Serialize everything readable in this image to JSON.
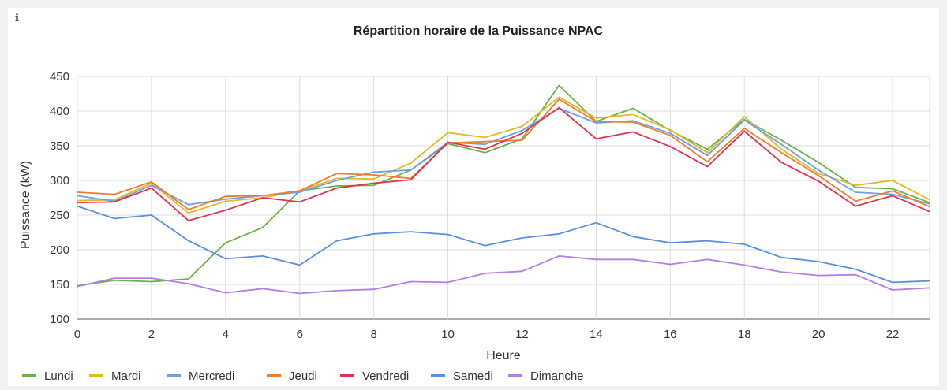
{
  "info_icon": "i",
  "chart_data": {
    "type": "line",
    "title": "Répartition horaire de la Puissance NPAC",
    "xlabel": "Heure",
    "ylabel": "Puissance (kW)",
    "xlim": [
      0,
      23
    ],
    "ylim": [
      100,
      450
    ],
    "x_ticks": [
      0,
      2,
      4,
      6,
      8,
      10,
      12,
      14,
      16,
      18,
      20,
      22
    ],
    "y_ticks": [
      100,
      150,
      200,
      250,
      300,
      350,
      400,
      450
    ],
    "grid": true,
    "legend_position": "bottom-left",
    "x": [
      0,
      1,
      2,
      3,
      4,
      5,
      6,
      7,
      8,
      9,
      10,
      11,
      12,
      13,
      14,
      15,
      16,
      17,
      18,
      19,
      20,
      21,
      22,
      23
    ],
    "series": [
      {
        "name": "Lundi",
        "color": "#6ab04c",
        "values": [
          148,
          156,
          154,
          158,
          210,
          232,
          285,
          292,
          293,
          315,
          353,
          340,
          360,
          437,
          385,
          404,
          372,
          345,
          388,
          358,
          326,
          290,
          288,
          268
        ]
      },
      {
        "name": "Mardi",
        "color": "#e5b824",
        "values": [
          271,
          272,
          296,
          253,
          270,
          275,
          285,
          303,
          302,
          325,
          369,
          362,
          378,
          420,
          390,
          395,
          373,
          340,
          392,
          345,
          310,
          293,
          300,
          272
        ]
      },
      {
        "name": "Mercredi",
        "color": "#6b9fe6",
        "values": [
          278,
          270,
          293,
          265,
          273,
          278,
          283,
          300,
          312,
          315,
          355,
          352,
          372,
          404,
          383,
          386,
          368,
          336,
          387,
          352,
          315,
          283,
          280,
          266
        ]
      },
      {
        "name": "Jeudi",
        "color": "#f07c2d",
        "values": [
          283,
          280,
          298,
          258,
          277,
          278,
          285,
          310,
          308,
          303,
          354,
          356,
          358,
          417,
          385,
          384,
          365,
          327,
          375,
          340,
          307,
          270,
          285,
          262
        ]
      },
      {
        "name": "Vendredi",
        "color": "#e0334f",
        "values": [
          268,
          269,
          289,
          242,
          257,
          275,
          269,
          289,
          296,
          301,
          355,
          345,
          368,
          405,
          360,
          370,
          349,
          320,
          371,
          326,
          299,
          263,
          278,
          255
        ]
      },
      {
        "name": "Samedi",
        "color": "#5a8fe0",
        "values": [
          263,
          245,
          250,
          213,
          187,
          191,
          178,
          213,
          223,
          226,
          222,
          206,
          217,
          223,
          239,
          219,
          210,
          213,
          208,
          189,
          183,
          172,
          153,
          155
        ]
      },
      {
        "name": "Dimanche",
        "color": "#b47ee0",
        "values": [
          147,
          159,
          159,
          151,
          138,
          144,
          137,
          141,
          143,
          154,
          153,
          166,
          169,
          191,
          186,
          186,
          179,
          186,
          178,
          168,
          163,
          164,
          142,
          145
        ]
      }
    ]
  }
}
